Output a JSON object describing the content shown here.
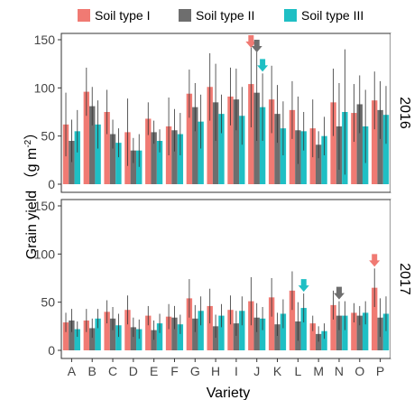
{
  "chart_data": {
    "type": "bar",
    "categories": [
      "A",
      "B",
      "C",
      "D",
      "E",
      "F",
      "G",
      "H",
      "I",
      "J",
      "K",
      "L",
      "M",
      "N",
      "O",
      "P"
    ],
    "xlabel": "Variety",
    "ylabel": "Grain yield （g m⁻²）",
    "ylabel_parts": {
      "main": "Grain yield （g m",
      "sup": "-2",
      "end": "）"
    },
    "ylim": [
      0,
      150
    ],
    "yticks": [
      0,
      50,
      100,
      150
    ],
    "legend": {
      "placement": "top",
      "entries": [
        "Soil type I",
        "Soil type II",
        "Soil type III"
      ]
    },
    "colors": [
      "#f07a73",
      "#6e6e6e",
      "#1fbfc4"
    ],
    "grid": false,
    "panels": [
      {
        "label": "2016",
        "series": [
          {
            "name": "Soil type I",
            "values": [
              62,
              96,
              75,
              54,
              68,
              60,
              94,
              101,
              91,
              104,
              88,
              77,
              58,
              85,
              74,
              87
            ],
            "error": [
              33,
              25,
              23,
              35,
              17,
              30,
              25,
              35,
              30,
              45,
              35,
              30,
              30,
              35,
              30,
              30
            ]
          },
          {
            "name": "Soil type II",
            "values": [
              45,
              81,
              52,
              35,
              54,
              56,
              80,
              85,
              88,
              95,
              73,
              56,
              41,
              60,
              83,
              77
            ],
            "error": [
              22,
              20,
              15,
              13,
              12,
              22,
              25,
              40,
              32,
              50,
              30,
              35,
              14,
              45,
              30,
              30
            ]
          },
          {
            "name": "Soil type III",
            "values": [
              55,
              62,
              43,
              35,
              45,
              52,
              65,
              73,
              71,
              80,
              58,
              55,
              50,
              75,
              60,
              72
            ],
            "error": [
              22,
              25,
              15,
              17,
              12,
              22,
              28,
              20,
              30,
              35,
              28,
              20,
              20,
              65,
              38,
              30
            ]
          }
        ],
        "annotations": [
          {
            "category": "J",
            "series": "Soil type I"
          },
          {
            "category": "J",
            "series": "Soil type II"
          },
          {
            "category": "J",
            "series": "Soil type III"
          }
        ]
      },
      {
        "label": "2017",
        "series": [
          {
            "name": "Soil type I",
            "values": [
              29,
              31,
              40,
              42,
              36,
              35,
              54,
              46,
              42,
              51,
              55,
              62,
              28,
              47,
              39,
              65
            ],
            "error": [
              10,
              12,
              12,
              15,
              10,
              13,
              20,
              18,
              15,
              25,
              20,
              20,
              8,
              15,
              10,
              20
            ]
          },
          {
            "name": "Soil type II",
            "values": [
              31,
              23,
              33,
              24,
              21,
              34,
              33,
              25,
              28,
              34,
              27,
              30,
              17,
              36,
              36,
              34
            ],
            "error": [
              12,
              10,
              12,
              10,
              10,
              12,
              14,
              12,
              13,
              15,
              12,
              20,
              8,
              15,
              10,
              20
            ]
          },
          {
            "name": "Soil type III",
            "values": [
              22,
              33,
              26,
              22,
              28,
              27,
              41,
              36,
              41,
              33,
              38,
              44,
              20,
              36,
              39,
              38
            ],
            "error": [
              8,
              10,
              12,
              10,
              10,
              10,
              15,
              12,
              15,
              12,
              15,
              15,
              8,
              15,
              12,
              18
            ]
          }
        ],
        "annotations": [
          {
            "category": "L",
            "series": "Soil type III"
          },
          {
            "category": "N",
            "series": "Soil type II"
          },
          {
            "category": "P",
            "series": "Soil type I"
          }
        ]
      }
    ]
  }
}
